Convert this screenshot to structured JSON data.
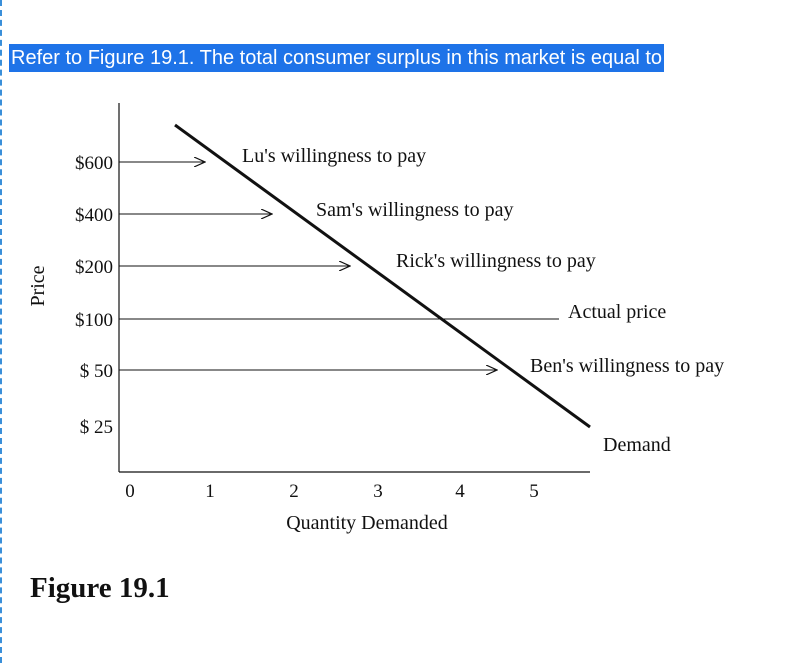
{
  "question": {
    "text": "Refer to Figure 19.1. The total consumer surplus in this market is equal to"
  },
  "figure": {
    "caption": "Figure 19.1"
  },
  "colors": {
    "highlight": "#1e73e8",
    "highlight_text": "#ffffff",
    "ink": "#111111"
  },
  "chart_data": {
    "type": "line",
    "xlabel": "Quantity Demanded",
    "ylabel": "Price",
    "x_ticks": [
      "0",
      "1",
      "2",
      "3",
      "4",
      "5"
    ],
    "y_ticks": [
      "$600",
      "$400",
      "$200",
      "$100",
      "$ 50",
      "$ 25"
    ],
    "y_scale": "categorical (non-linear price levels)",
    "grid": false,
    "demand_curve": {
      "label": "Demand",
      "shape": "downward-sloping straight line"
    },
    "willingness_to_pay": [
      {
        "price": "$600",
        "label": "Lu's willingness to pay"
      },
      {
        "price": "$400",
        "label": "Sam's willingness to pay"
      },
      {
        "price": "$200",
        "label": "Rick's willingness to pay"
      },
      {
        "price": "$ 50",
        "label": "Ben's willingness to pay"
      }
    ],
    "actual_price": {
      "price": "$100",
      "label": "Actual price"
    }
  }
}
